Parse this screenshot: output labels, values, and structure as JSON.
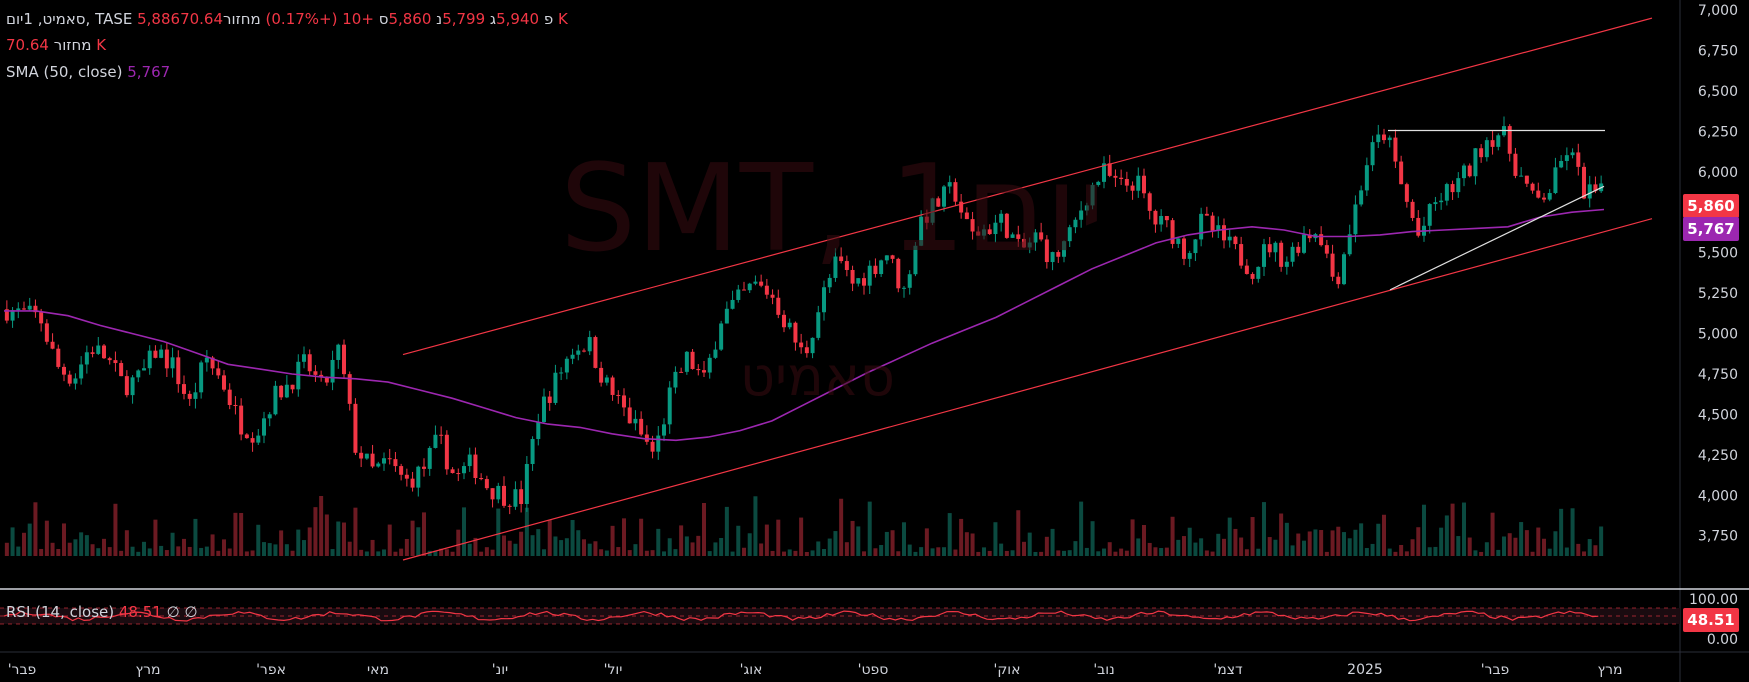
{
  "legend": {
    "line1": {
      "name": "סאמיט, 1יום, TASE",
      "o_label": "פ",
      "o": "5,886",
      "h_label": "ג",
      "h": "5,940",
      "l_label": "נ",
      "l": "5,799",
      "c_label": "ס",
      "c": "5,860",
      "change": "+10 (+0.17%)",
      "vol_label": "מחזור",
      "vol": "70.64 K"
    },
    "line2": {
      "label": "מחזור",
      "value": "70.64 K"
    },
    "line3": {
      "label": "SMA (50, close)",
      "value": "5,767"
    },
    "rsi": {
      "label": "RSI (14, close)",
      "value": "48.51",
      "a": "∅",
      "b": "∅"
    }
  },
  "watermark": {
    "symbol": "SMT, 1יום",
    "name": "סאמיט"
  },
  "colors": {
    "up": "#089981",
    "down": "#f23645",
    "sma": "#9c27b0",
    "channel": "#f23645",
    "trend": "#e0e0e0",
    "rsi": "#f23645"
  },
  "badges": {
    "last": "5,860",
    "sma": "5,767",
    "rsi": "48.51"
  },
  "chart_data": {
    "type": "candlestick",
    "symbol": "SMT",
    "exchange": "TASE",
    "interval": "1D",
    "ylim": [
      3600,
      7000
    ],
    "y_ticks": [
      "7,000",
      "6,750",
      "6,500",
      "6,250",
      "6,000",
      "5,750",
      "5,500",
      "5,250",
      "5,000",
      "4,750",
      "4,500",
      "4,250",
      "4,000",
      "3,750"
    ],
    "rsi_ticks": [
      "100.00",
      "0.00"
    ],
    "x_labels": [
      "'פבר",
      "מרץ",
      "'אפר",
      "מאי",
      "'יונ",
      "'יול",
      "'אוג",
      "'ספט",
      "'אוק",
      "'נוב",
      "'דצמ",
      "2025",
      "'פבר",
      "מרץ"
    ],
    "price_path": [
      5150,
      5120,
      5100,
      4800,
      4720,
      4920,
      4850,
      4680,
      4720,
      4900,
      4800,
      4560,
      4850,
      4700,
      4450,
      4380,
      4600,
      4700,
      4820,
      4650,
      4900,
      4300,
      4150,
      4200,
      4080,
      4150,
      4350,
      4100,
      4200,
      4050,
      4000,
      3980,
      4500,
      4700,
      4900,
      4950,
      4700,
      4550,
      4400,
      4250,
      4650,
      4850,
      4700,
      5100,
      5200,
      5300,
      5250,
      5050,
      4850,
      5200,
      5450,
      5300,
      5400,
      5500,
      5250,
      5700,
      5800,
      5900,
      5600,
      5650,
      5700,
      5500,
      5600,
      5450,
      5600,
      5850,
      6000,
      5900,
      5950,
      5700,
      5650,
      5500,
      5700,
      5600,
      5500,
      5400,
      5550,
      5450,
      5600,
      5650,
      5300,
      5700,
      6100,
      6250,
      5900,
      5600,
      5800,
      5900,
      6000,
      6200,
      6250,
      6000,
      5800,
      5900,
      6150,
      5880,
      5860
    ],
    "series": [
      {
        "name": "SMA (50, close)",
        "values": [
          5140,
          5140,
          5110,
          5050,
          5000,
          4950,
          4880,
          4810,
          4780,
          4750,
          4730,
          4720,
          4700,
          4650,
          4600,
          4540,
          4480,
          4440,
          4420,
          4380,
          4350,
          4340,
          4360,
          4400,
          4460,
          4560,
          4660,
          4760,
          4850,
          4940,
          5020,
          5100,
          5200,
          5300,
          5400,
          5480,
          5560,
          5610,
          5640,
          5660,
          5640,
          5600,
          5600,
          5610,
          5630,
          5640,
          5650,
          5660,
          5720,
          5750,
          5767
        ]
      }
    ],
    "lines": [
      {
        "name": "channel-upper",
        "from": [
          "מאי",
          4870
        ],
        "to": [
          "end",
          6950
        ]
      },
      {
        "name": "channel-lower",
        "from": [
          "מאי",
          3600
        ],
        "to": [
          "end",
          5710
        ]
      },
      {
        "name": "resistance",
        "value": 6255
      },
      {
        "name": "support-trend",
        "from": [
          "2025",
          5270
        ],
        "to": [
          "end",
          5910
        ]
      }
    ],
    "last_close": 5860,
    "sma_last": 5767,
    "rsi_last": 48.51
  }
}
